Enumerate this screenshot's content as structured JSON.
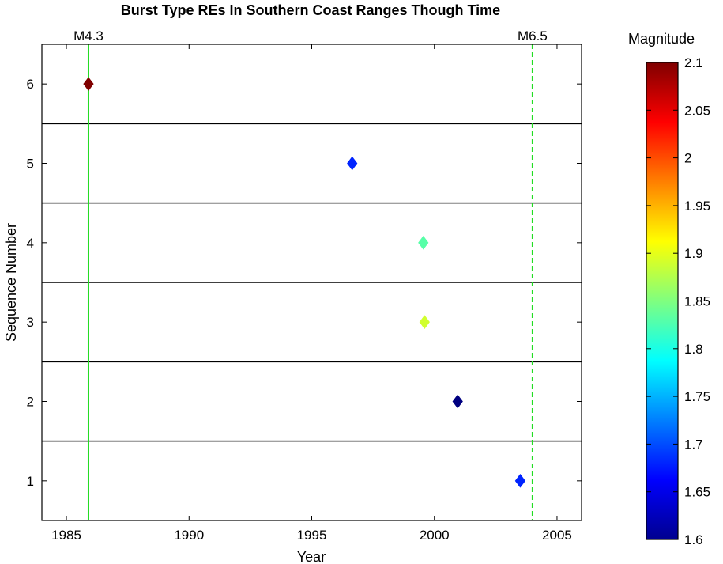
{
  "chart_data": {
    "type": "scatter",
    "title": "Burst Type REs In Southern Coast Ranges Though Time",
    "xlabel": "Year",
    "ylabel": "Sequence Number",
    "xlim": [
      1984,
      2006
    ],
    "ylim": [
      0.5,
      6.5
    ],
    "xticks": [
      1985,
      1990,
      1995,
      2000,
      2005
    ],
    "yticks": [
      1,
      2,
      3,
      4,
      5,
      6
    ],
    "separators": [
      1.5,
      2.5,
      3.5,
      4.5,
      5.5
    ],
    "grid": false,
    "points": [
      {
        "x": 1985.9,
        "y": 6,
        "magnitude": 2.1
      },
      {
        "x": 1996.65,
        "y": 5,
        "magnitude": 1.68
      },
      {
        "x": 1999.55,
        "y": 4,
        "magnitude": 1.83
      },
      {
        "x": 1999.6,
        "y": 3,
        "magnitude": 1.89
      },
      {
        "x": 2000.95,
        "y": 2,
        "magnitude": 1.6
      },
      {
        "x": 2003.5,
        "y": 1,
        "magnitude": 1.68
      }
    ],
    "events": [
      {
        "label": "M4.3",
        "x": 1985.9,
        "style": "solid",
        "color": "#22dd22"
      },
      {
        "label": "M6.5",
        "x": 2004.0,
        "style": "dashed",
        "color": "#22dd22"
      }
    ],
    "colorbar": {
      "label": "Magnitude",
      "colormap": "jet",
      "range": [
        1.6,
        2.1
      ],
      "ticks": [
        1.6,
        1.65,
        1.7,
        1.75,
        1.8,
        1.85,
        1.9,
        1.95,
        2,
        2.05,
        2.1
      ],
      "tick_labels": [
        "1.6",
        "1.65",
        "1.7",
        "1.75",
        "1.8",
        "1.85",
        "1.9",
        "1.95",
        "2",
        "2.05",
        "2.1"
      ]
    }
  }
}
